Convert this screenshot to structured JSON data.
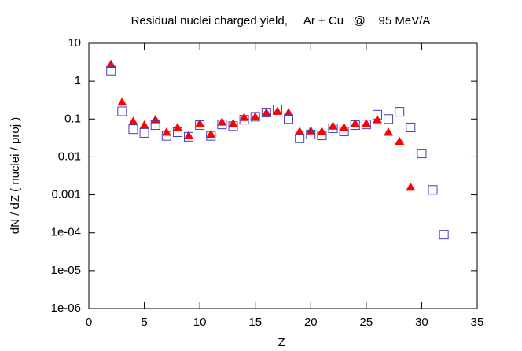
{
  "chart_data": {
    "type": "scatter",
    "title": "Residual nuclei charged yield,     Ar + Cu   @    95 MeV/A",
    "xlabel": "Z",
    "ylabel": "dN / dZ ( nuclei / proj )",
    "ylog": true,
    "grid": false,
    "xlim": [
      0,
      35
    ],
    "xticks": [
      0,
      5,
      10,
      15,
      20,
      25,
      30,
      35
    ],
    "ylim": [
      1e-06,
      10
    ],
    "yticks": [
      10,
      1,
      0.1,
      0.01,
      0.001,
      {
        "value": 0.0001,
        "label": "1e-04"
      },
      {
        "value": 1e-05,
        "label": "1e-05"
      },
      {
        "value": 1e-06,
        "label": "1e-06"
      }
    ],
    "series": [
      {
        "color": "#ff0000",
        "marker": "triangle-filled",
        "x": [
          2,
          3,
          4,
          5,
          6,
          7,
          8,
          9,
          10,
          11,
          12,
          13,
          14,
          15,
          16,
          17,
          18,
          19,
          20,
          21,
          22,
          23,
          24,
          25,
          26,
          27,
          28,
          29
        ],
        "values": [
          2.8,
          0.28,
          0.087,
          0.069,
          0.096,
          0.045,
          0.06,
          0.037,
          0.076,
          0.04,
          0.083,
          0.076,
          0.11,
          0.115,
          0.148,
          0.16,
          0.148,
          0.047,
          0.049,
          0.047,
          0.065,
          0.06,
          0.076,
          0.076,
          0.096,
          0.045,
          0.026,
          0.0016
        ]
      },
      {
        "color": "#4040c0",
        "marker": "square-open",
        "x": [
          2,
          3,
          4,
          5,
          6,
          7,
          8,
          9,
          10,
          11,
          12,
          13,
          14,
          15,
          16,
          17,
          18,
          19,
          20,
          21,
          22,
          23,
          24,
          25,
          26,
          27,
          28,
          29,
          30,
          31,
          32
        ],
        "values": [
          1.9,
          0.16,
          0.054,
          0.043,
          0.069,
          0.036,
          0.045,
          0.034,
          0.069,
          0.036,
          0.072,
          0.065,
          0.096,
          0.115,
          0.148,
          0.18,
          0.1,
          0.031,
          0.039,
          0.037,
          0.057,
          0.047,
          0.069,
          0.072,
          0.13,
          0.1,
          0.155,
          0.06,
          0.0123,
          0.00135,
          8.9e-05
        ]
      }
    ]
  }
}
